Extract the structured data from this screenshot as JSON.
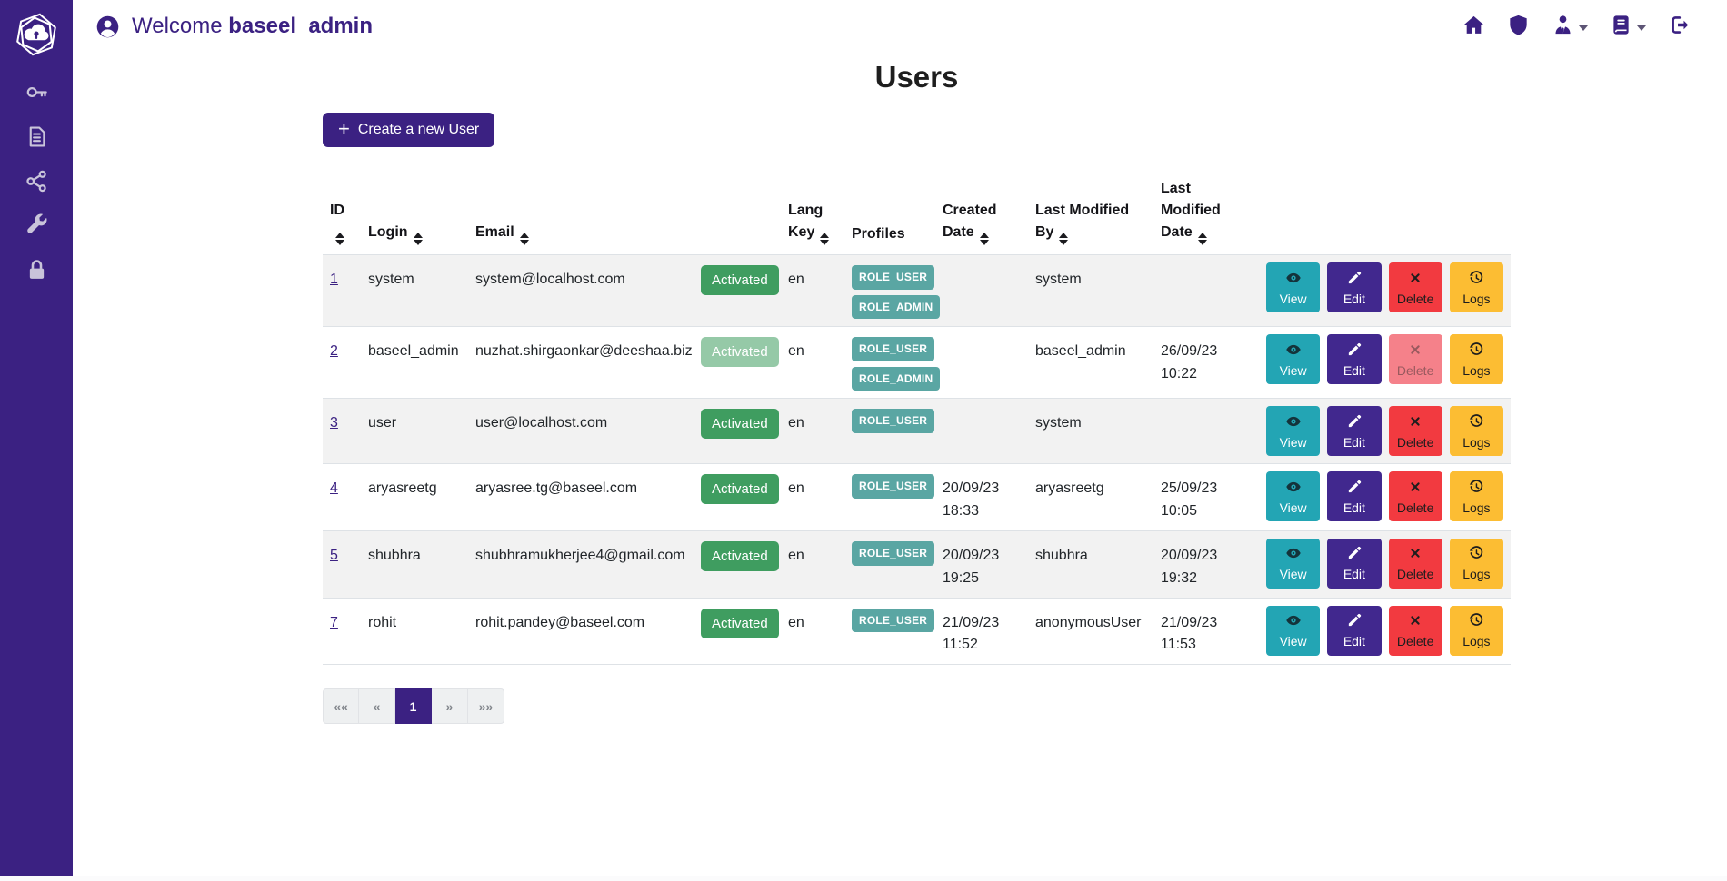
{
  "header": {
    "welcome_prefix": "Welcome",
    "username": "baseel_admin",
    "user_icon": "user-circle-icon",
    "nav_icons": [
      {
        "key": "home",
        "icon": "home-icon",
        "caret": false
      },
      {
        "key": "shield",
        "icon": "shield-icon",
        "caret": false
      },
      {
        "key": "account",
        "icon": "user-tie-icon",
        "caret": true
      },
      {
        "key": "entities",
        "icon": "book-icon",
        "caret": true
      },
      {
        "key": "sign-out",
        "icon": "sign-out-icon",
        "caret": false
      }
    ]
  },
  "sidebar": {
    "logo_icon": "hexagon-cloud-lock-logo",
    "items": [
      {
        "key": "key",
        "icon": "key-icon"
      },
      {
        "key": "documents",
        "icon": "document-icon"
      },
      {
        "key": "share",
        "icon": "share-nodes-icon"
      },
      {
        "key": "tools",
        "icon": "wrench-icon"
      },
      {
        "key": "security",
        "icon": "lock-icon"
      }
    ]
  },
  "main": {
    "title": "Users",
    "create_button": {
      "label": "Create a new User",
      "icon": "plus-icon"
    },
    "table": {
      "columns": [
        {
          "key": "id",
          "label": "ID",
          "sortable": true
        },
        {
          "key": "login",
          "label": "Login",
          "sortable": true
        },
        {
          "key": "email",
          "label": "Email",
          "sortable": true
        },
        {
          "key": "status",
          "label": "",
          "sortable": false
        },
        {
          "key": "lang-key",
          "label": "Lang Key",
          "sortable": true
        },
        {
          "key": "profiles",
          "label": "Profiles",
          "sortable": false
        },
        {
          "key": "created-date",
          "label": "Created Date",
          "sortable": true
        },
        {
          "key": "last-modified-by",
          "label": "Last Modified By",
          "sortable": true
        },
        {
          "key": "last-modified-date",
          "label": "Last Modified Date",
          "sortable": true
        },
        {
          "key": "actions",
          "label": "",
          "sortable": false
        }
      ],
      "action_buttons": [
        {
          "key": "view",
          "label": "View",
          "icon": "eye-icon"
        },
        {
          "key": "edit",
          "label": "Edit",
          "icon": "pencil-icon"
        },
        {
          "key": "delete",
          "label": "Delete",
          "icon": "x-icon"
        },
        {
          "key": "logs",
          "label": "Logs",
          "icon": "history-icon"
        }
      ],
      "rows": [
        {
          "id": "1",
          "login": "system",
          "email": "system@localhost.com",
          "status": "Activated",
          "status_disabled": false,
          "lang_key": "en",
          "profiles": [
            "ROLE_USER",
            "ROLE_ADMIN"
          ],
          "created_date": "",
          "created_time": "",
          "last_modified_by": "system",
          "last_modified_date": "",
          "last_modified_time": "",
          "delete_disabled": false
        },
        {
          "id": "2",
          "login": "baseel_admin",
          "email": "nuzhat.shirgaonkar@deeshaa.biz",
          "status": "Activated",
          "status_disabled": true,
          "lang_key": "en",
          "profiles": [
            "ROLE_USER",
            "ROLE_ADMIN"
          ],
          "created_date": "",
          "created_time": "",
          "last_modified_by": "baseel_admin",
          "last_modified_date": "26/09/23",
          "last_modified_time": "10:22",
          "delete_disabled": true
        },
        {
          "id": "3",
          "login": "user",
          "email": "user@localhost.com",
          "status": "Activated",
          "status_disabled": false,
          "lang_key": "en",
          "profiles": [
            "ROLE_USER"
          ],
          "created_date": "",
          "created_time": "",
          "last_modified_by": "system",
          "last_modified_date": "",
          "last_modified_time": "",
          "delete_disabled": false
        },
        {
          "id": "4",
          "login": "aryasreetg",
          "email": "aryasree.tg@baseel.com",
          "status": "Activated",
          "status_disabled": false,
          "lang_key": "en",
          "profiles": [
            "ROLE_USER"
          ],
          "created_date": "20/09/23",
          "created_time": "18:33",
          "last_modified_by": "aryasreetg",
          "last_modified_date": "25/09/23",
          "last_modified_time": "10:05",
          "delete_disabled": false
        },
        {
          "id": "5",
          "login": "shubhra",
          "email": "shubhramukherjee4@gmail.com",
          "status": "Activated",
          "status_disabled": false,
          "lang_key": "en",
          "profiles": [
            "ROLE_USER"
          ],
          "created_date": "20/09/23",
          "created_time": "19:25",
          "last_modified_by": "shubhra",
          "last_modified_date": "20/09/23",
          "last_modified_time": "19:32",
          "delete_disabled": false
        },
        {
          "id": "7",
          "login": "rohit",
          "email": "rohit.pandey@baseel.com",
          "status": "Activated",
          "status_disabled": false,
          "lang_key": "en",
          "profiles": [
            "ROLE_USER"
          ],
          "created_date": "21/09/23",
          "created_time": "11:52",
          "last_modified_by": "anonymousUser",
          "last_modified_date": "21/09/23",
          "last_modified_time": "11:53",
          "delete_disabled": false
        }
      ]
    },
    "pagination": {
      "items": [
        {
          "key": "first",
          "label": "««"
        },
        {
          "key": "prev",
          "label": "«"
        },
        {
          "key": "page-1",
          "label": "1",
          "active": true
        },
        {
          "key": "next",
          "label": "»"
        },
        {
          "key": "last",
          "label": "»»"
        }
      ]
    }
  },
  "colors": {
    "primary_purple": "#3b2182",
    "edit_purple": "#41288e",
    "view_teal": "#23a5b4",
    "delete_red": "#f23a40",
    "logs_yellow": "#fcbd33",
    "activated_green": "#3f9d60",
    "profile_badge_teal": "#5aa6a3"
  }
}
